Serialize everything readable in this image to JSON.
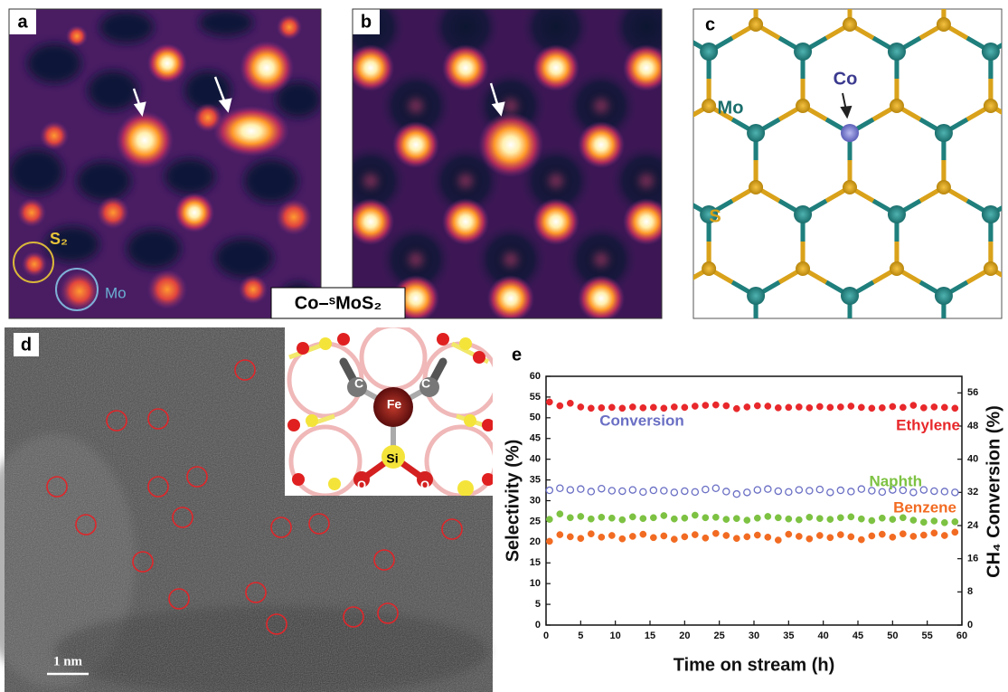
{
  "panels": {
    "a": {
      "label": "a",
      "annotations": [
        "S₂",
        "Mo"
      ]
    },
    "b": {
      "label": "b",
      "caption": "Co–ˢMoS₂"
    },
    "c": {
      "label": "c",
      "atoms": [
        "Co",
        "Mo",
        "S"
      ]
    },
    "d": {
      "label": "d",
      "scale_bar": "1 nm",
      "inset_atoms": [
        "C",
        "Fe",
        "C",
        "Si",
        "O",
        "O"
      ]
    },
    "e": {
      "label": "e"
    }
  },
  "chart_data": {
    "type": "scatter",
    "xlabel": "Time on stream (h)",
    "ylabel": "Selectivity (%)",
    "y2label": "CH₄ Conversion (%)",
    "xlim": [
      0,
      60
    ],
    "xticks": [
      0,
      5,
      10,
      15,
      20,
      25,
      30,
      35,
      40,
      45,
      50,
      55,
      60
    ],
    "ylim": [
      0,
      60
    ],
    "yticks": [
      0,
      5,
      10,
      15,
      20,
      25,
      30,
      35,
      40,
      45,
      50,
      55,
      60
    ],
    "y2lim": [
      0,
      60
    ],
    "y2ticks": [
      0,
      8,
      16,
      24,
      32,
      40,
      48,
      56
    ],
    "x": [
      0.5,
      2,
      3.5,
      5,
      6.5,
      8,
      9.5,
      11,
      12.5,
      14,
      15.5,
      17,
      18.5,
      20,
      21.5,
      23,
      24.5,
      26,
      27.5,
      29,
      30.5,
      32,
      33.5,
      35,
      36.5,
      38,
      39.5,
      41,
      42.5,
      44,
      45.5,
      47,
      48.5,
      50,
      51.5,
      53,
      54.5,
      56,
      57.5,
      59
    ],
    "series": [
      {
        "name": "Ethylene",
        "color": "#e8282b",
        "filled": true,
        "values": [
          53.8,
          52.9,
          53.5,
          52.6,
          52.3,
          52.4,
          52.5,
          52.3,
          52.6,
          52.4,
          52.5,
          52.3,
          52.6,
          52.5,
          52.8,
          53.0,
          53.1,
          52.9,
          52.2,
          52.6,
          52.9,
          52.8,
          52.4,
          52.5,
          52.6,
          52.4,
          52.7,
          52.5,
          52.6,
          52.8,
          52.5,
          52.3,
          52.4,
          52.7,
          52.5,
          53.0,
          52.4,
          52.6,
          52.5,
          52.3
        ]
      },
      {
        "name": "Conversion",
        "color": "#6a6fc4",
        "filled": false,
        "axis": "y2",
        "values": [
          32.5,
          33.0,
          32.6,
          32.8,
          32.2,
          32.9,
          32.4,
          32.3,
          32.6,
          32.1,
          32.5,
          32.4,
          32.0,
          32.3,
          32.1,
          32.7,
          33.0,
          32.2,
          31.6,
          32.0,
          32.6,
          32.8,
          32.3,
          32.1,
          32.6,
          32.4,
          32.7,
          32.0,
          32.5,
          32.2,
          32.8,
          32.4,
          32.1,
          32.6,
          32.5,
          32.0,
          32.6,
          32.3,
          32.2,
          32.0
        ]
      },
      {
        "name": "Naphth",
        "color": "#7dc242",
        "filled": true,
        "values": [
          25.5,
          26.8,
          25.9,
          26.2,
          25.6,
          26.0,
          25.8,
          25.4,
          26.1,
          25.7,
          25.9,
          26.4,
          25.6,
          25.8,
          26.5,
          25.9,
          26.0,
          25.5,
          25.7,
          25.3,
          25.8,
          26.2,
          25.9,
          25.6,
          25.4,
          26.0,
          25.7,
          25.5,
          25.9,
          26.1,
          25.6,
          25.2,
          25.8,
          25.5,
          25.9,
          25.3,
          24.8,
          25.1,
          24.7,
          24.9
        ]
      },
      {
        "name": "Benzene",
        "color": "#f26b22",
        "filled": true,
        "values": [
          20.2,
          21.8,
          21.3,
          20.9,
          22.0,
          21.2,
          21.6,
          20.8,
          21.4,
          21.9,
          21.1,
          21.5,
          20.7,
          21.3,
          21.8,
          21.0,
          22.1,
          21.6,
          20.9,
          21.3,
          21.7,
          21.2,
          20.5,
          21.9,
          21.4,
          20.8,
          21.6,
          21.1,
          21.8,
          21.3,
          20.6,
          21.5,
          21.9,
          21.2,
          22.0,
          21.4,
          21.7,
          22.2,
          21.6,
          22.4
        ]
      }
    ]
  }
}
